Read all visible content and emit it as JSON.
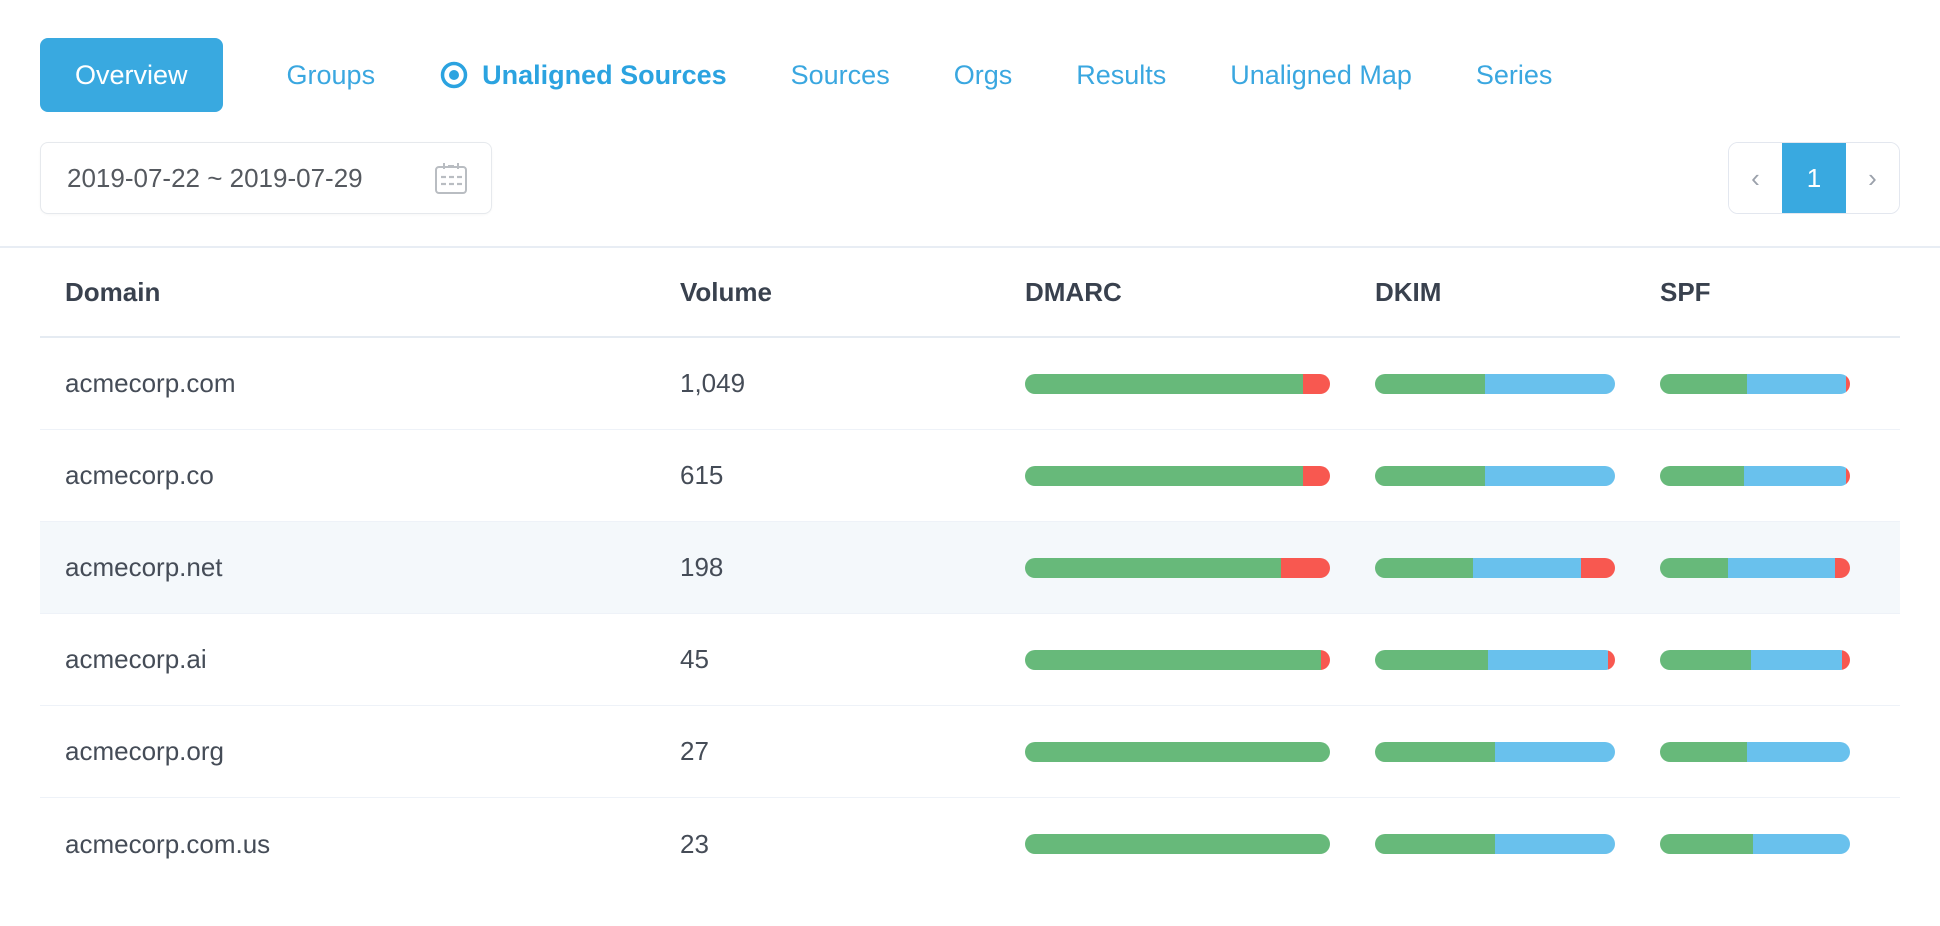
{
  "nav": {
    "tabs": [
      {
        "id": "overview",
        "label": "Overview",
        "active_button": true
      },
      {
        "id": "groups",
        "label": "Groups"
      },
      {
        "id": "unaligned-sources",
        "label": "Unaligned Sources",
        "current": true,
        "icon": "target-icon"
      },
      {
        "id": "sources",
        "label": "Sources"
      },
      {
        "id": "orgs",
        "label": "Orgs"
      },
      {
        "id": "results",
        "label": "Results"
      },
      {
        "id": "unaligned-map",
        "label": "Unaligned Map"
      },
      {
        "id": "series",
        "label": "Series"
      }
    ]
  },
  "filters": {
    "date_range": {
      "value": "2019-07-22 ~ 2019-07-29",
      "icon": "calendar-icon"
    }
  },
  "pagination": {
    "prev_icon": "‹",
    "current_page": "1",
    "next_icon": "›"
  },
  "table": {
    "headers": [
      "Domain",
      "Volume",
      "DMARC",
      "DKIM",
      "SPF"
    ],
    "rows": [
      {
        "domain": "acmecorp.com",
        "volume": "1,049",
        "highlighted": false,
        "bars": {
          "dmarc": {
            "pass": 91,
            "neutral": 0,
            "fail": 9
          },
          "dkim": {
            "pass": 46,
            "neutral": 54,
            "fail": 0
          },
          "spf": {
            "pass": 46,
            "neutral": 52,
            "fail": 2
          }
        }
      },
      {
        "domain": "acmecorp.co",
        "volume": "615",
        "highlighted": false,
        "bars": {
          "dmarc": {
            "pass": 91,
            "neutral": 0,
            "fail": 9
          },
          "dkim": {
            "pass": 46,
            "neutral": 54,
            "fail": 0
          },
          "spf": {
            "pass": 44,
            "neutral": 54,
            "fail": 2
          }
        }
      },
      {
        "domain": "acmecorp.net",
        "volume": "198",
        "highlighted": true,
        "bars": {
          "dmarc": {
            "pass": 84,
            "neutral": 0,
            "fail": 16
          },
          "dkim": {
            "pass": 41,
            "neutral": 45,
            "fail": 14
          },
          "spf": {
            "pass": 36,
            "neutral": 56,
            "fail": 8
          }
        }
      },
      {
        "domain": "acmecorp.ai",
        "volume": "45",
        "highlighted": false,
        "bars": {
          "dmarc": {
            "pass": 97,
            "neutral": 0,
            "fail": 3
          },
          "dkim": {
            "pass": 47,
            "neutral": 50,
            "fail": 3
          },
          "spf": {
            "pass": 48,
            "neutral": 48,
            "fail": 4
          }
        }
      },
      {
        "domain": "acmecorp.org",
        "volume": "27",
        "highlighted": false,
        "bars": {
          "dmarc": {
            "pass": 100,
            "neutral": 0,
            "fail": 0
          },
          "dkim": {
            "pass": 50,
            "neutral": 50,
            "fail": 0
          },
          "spf": {
            "pass": 46,
            "neutral": 54,
            "fail": 0
          }
        }
      },
      {
        "domain": "acmecorp.com.us",
        "volume": "23",
        "highlighted": false,
        "bars": {
          "dmarc": {
            "pass": 100,
            "neutral": 0,
            "fail": 0
          },
          "dkim": {
            "pass": 50,
            "neutral": 50,
            "fail": 0
          },
          "spf": {
            "pass": 49,
            "neutral": 51,
            "fail": 0
          }
        }
      }
    ]
  },
  "colors": {
    "accent_blue": "#39a9e0",
    "pass_green": "#67b97a",
    "neutral_blue": "#69c1ed",
    "fail_red": "#f85850"
  }
}
